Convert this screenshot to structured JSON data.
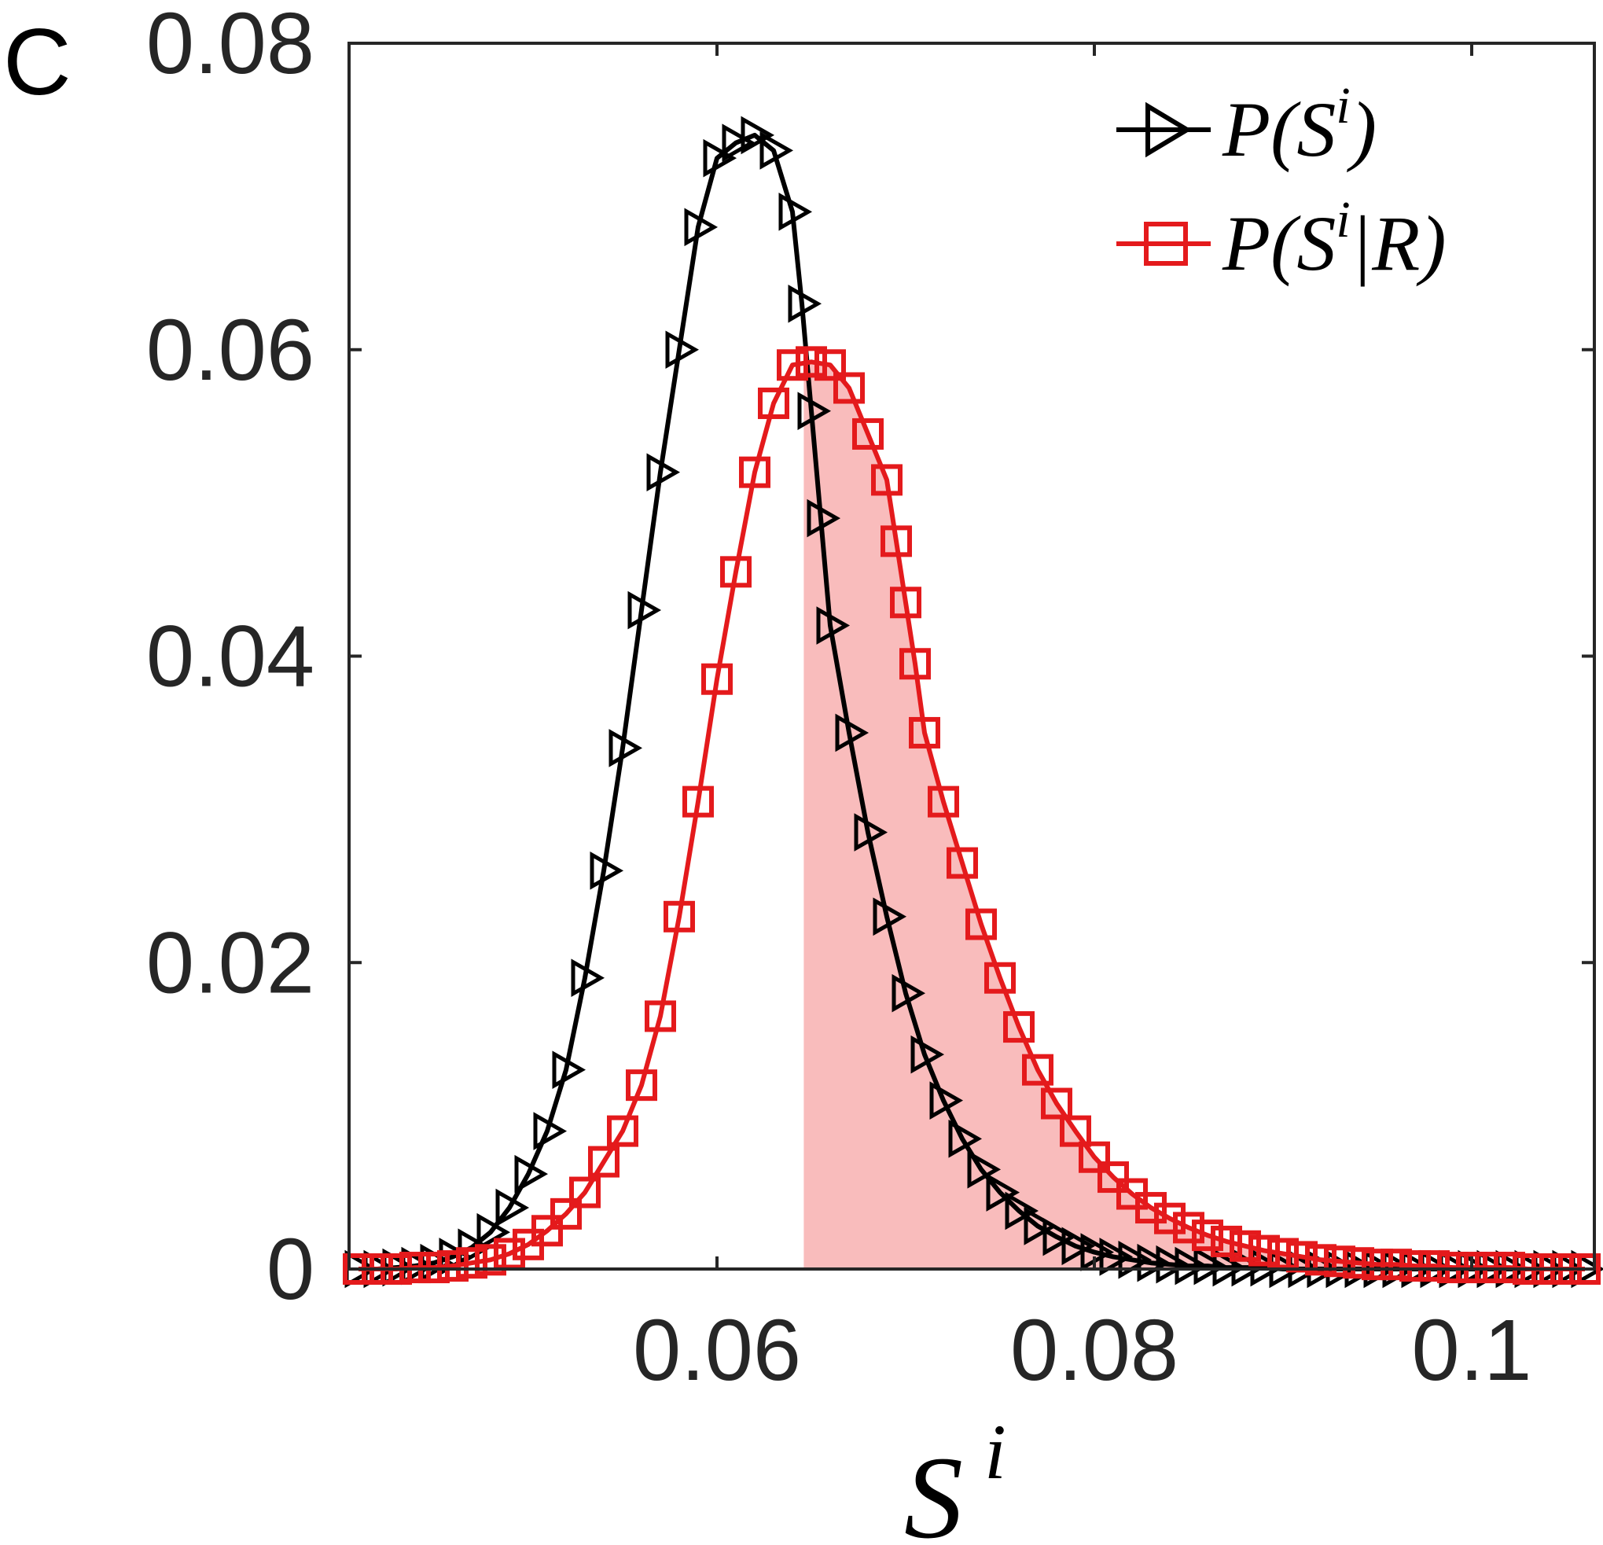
{
  "panel_label": "C",
  "chart_data": {
    "type": "line",
    "title": "",
    "xlabel": {
      "base": "S",
      "sup": "i"
    },
    "ylabel": "",
    "xlim": [
      0.0405,
      0.1065
    ],
    "ylim": [
      0,
      0.08
    ],
    "xticks": [
      0.06,
      0.08,
      0.1
    ],
    "xtick_labels": [
      "0.06",
      "0.08",
      "0.1"
    ],
    "yticks": [
      0,
      0.02,
      0.04,
      0.06,
      0.08
    ],
    "ytick_labels": [
      "0",
      "0.02",
      "0.04",
      "0.06",
      "0.08"
    ],
    "grid": false,
    "legend_position": "top-right",
    "shaded_region": {
      "series": "P(S^i|R)",
      "x_from": 0.0646,
      "color": "#f9bcbc"
    },
    "series": [
      {
        "name": "P(S^i)",
        "legend": {
          "prefix": "P(S",
          "sup": "i",
          "suffix": ")"
        },
        "color": "#000000",
        "marker": "triangle-right",
        "x": [
          0.041,
          0.042,
          0.043,
          0.044,
          0.045,
          0.046,
          0.047,
          0.048,
          0.049,
          0.05,
          0.051,
          0.052,
          0.053,
          0.054,
          0.055,
          0.056,
          0.057,
          0.058,
          0.059,
          0.06,
          0.061,
          0.062,
          0.063,
          0.064,
          0.0645,
          0.065,
          0.0655,
          0.066,
          0.067,
          0.068,
          0.069,
          0.07,
          0.071,
          0.072,
          0.073,
          0.074,
          0.075,
          0.076,
          0.077,
          0.078,
          0.079,
          0.08,
          0.081,
          0.082,
          0.083,
          0.084,
          0.085,
          0.086,
          0.087,
          0.088,
          0.089,
          0.09,
          0.091,
          0.092,
          0.093,
          0.094,
          0.095,
          0.096,
          0.097,
          0.098,
          0.099,
          0.1,
          0.101,
          0.102,
          0.103,
          0.104,
          0.105,
          0.106
        ],
        "values": [
          0.0,
          0.0,
          0.0001,
          0.0002,
          0.0004,
          0.0008,
          0.0014,
          0.0024,
          0.004,
          0.0062,
          0.009,
          0.013,
          0.019,
          0.026,
          0.034,
          0.043,
          0.052,
          0.06,
          0.068,
          0.0725,
          0.0735,
          0.074,
          0.073,
          0.069,
          0.063,
          0.056,
          0.049,
          0.042,
          0.035,
          0.0285,
          0.023,
          0.018,
          0.014,
          0.011,
          0.0085,
          0.0065,
          0.005,
          0.0038,
          0.0028,
          0.0021,
          0.0015,
          0.0011,
          0.0008,
          0.0006,
          0.0004,
          0.0003,
          0.0002,
          0.0002,
          0.0001,
          0.0001,
          0.0001,
          0.0,
          0.0,
          0.0,
          0.0,
          0.0,
          0.0,
          0.0,
          0.0,
          0.0,
          0.0,
          0.0,
          0.0,
          0.0,
          0.0,
          0.0,
          0.0,
          0.0
        ]
      },
      {
        "name": "P(S^i|R)",
        "legend": {
          "prefix": "P(S",
          "sup": "i",
          "suffix": "|R)"
        },
        "color": "#e41a1c",
        "marker": "square",
        "x": [
          0.041,
          0.042,
          0.043,
          0.044,
          0.045,
          0.046,
          0.047,
          0.048,
          0.049,
          0.05,
          0.051,
          0.052,
          0.053,
          0.054,
          0.055,
          0.056,
          0.057,
          0.058,
          0.059,
          0.06,
          0.061,
          0.062,
          0.063,
          0.064,
          0.065,
          0.066,
          0.067,
          0.068,
          0.069,
          0.0695,
          0.07,
          0.0705,
          0.071,
          0.072,
          0.073,
          0.074,
          0.075,
          0.076,
          0.077,
          0.078,
          0.079,
          0.08,
          0.081,
          0.082,
          0.083,
          0.084,
          0.085,
          0.086,
          0.087,
          0.088,
          0.089,
          0.09,
          0.091,
          0.092,
          0.093,
          0.094,
          0.095,
          0.096,
          0.097,
          0.098,
          0.099,
          0.1,
          0.101,
          0.102,
          0.103,
          0.104,
          0.105,
          0.106
        ],
        "values": [
          0.0,
          0.0,
          0.0,
          0.0001,
          0.0001,
          0.0002,
          0.0004,
          0.0006,
          0.001,
          0.0016,
          0.0025,
          0.0036,
          0.005,
          0.007,
          0.009,
          0.012,
          0.0165,
          0.023,
          0.0305,
          0.0385,
          0.0455,
          0.052,
          0.0565,
          0.059,
          0.0592,
          0.059,
          0.0575,
          0.0545,
          0.0515,
          0.0475,
          0.0435,
          0.0395,
          0.035,
          0.0305,
          0.0265,
          0.0225,
          0.019,
          0.0158,
          0.013,
          0.0108,
          0.009,
          0.0073,
          0.006,
          0.0049,
          0.004,
          0.0033,
          0.0027,
          0.0022,
          0.0018,
          0.0015,
          0.0012,
          0.001,
          0.0008,
          0.0006,
          0.0005,
          0.0004,
          0.0003,
          0.0003,
          0.0002,
          0.0002,
          0.0001,
          0.0001,
          0.0001,
          0.0001,
          0.0,
          0.0,
          0.0,
          0.0
        ]
      }
    ]
  }
}
